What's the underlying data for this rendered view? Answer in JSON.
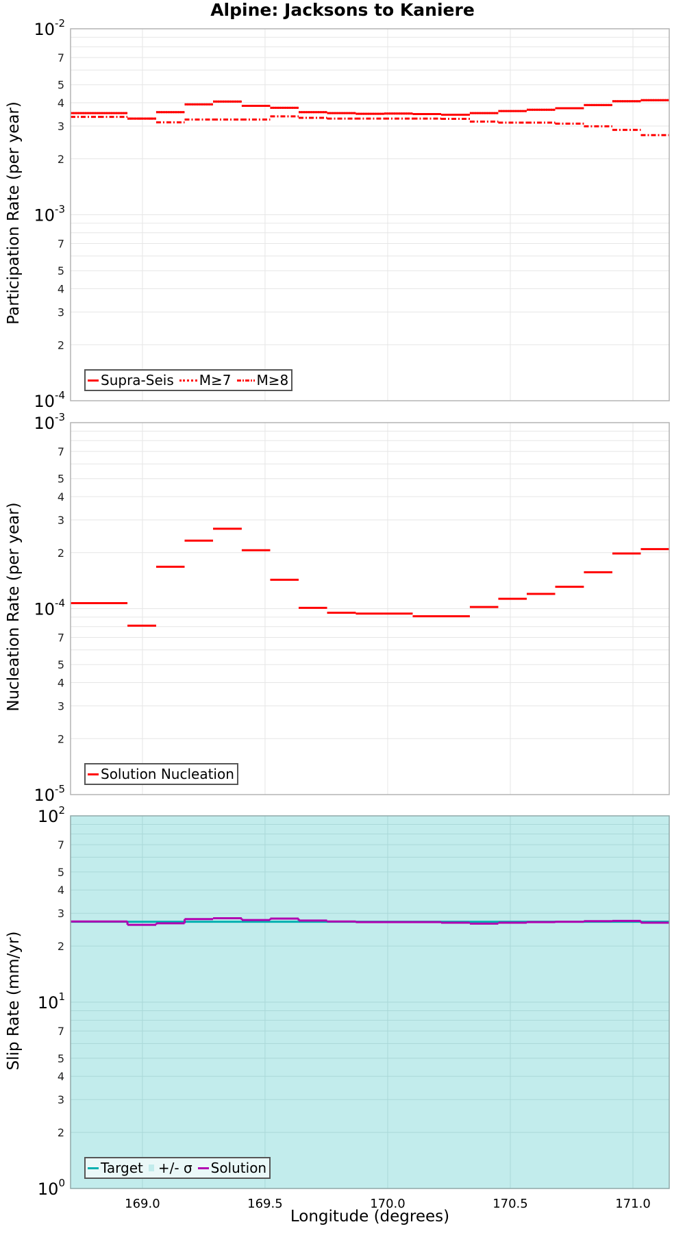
{
  "title": "Alpine: Jacksons to Kaniere",
  "xlabel": "Longitude (degrees)",
  "x_ticks": [
    "169.0",
    "169.5",
    "170.0",
    "170.5",
    "171.0"
  ],
  "panels": [
    {
      "ylabel": "Participation Rate (per year)",
      "legend": [
        {
          "label": "Supra-Seis",
          "style": "solid",
          "color": "#ff0000"
        },
        {
          "label": "M≥7",
          "style": "dotted",
          "color": "#ff0000"
        },
        {
          "label": "M≥8",
          "style": "dashdot",
          "color": "#ff0000"
        }
      ]
    },
    {
      "ylabel": "Nucleation Rate (per year)",
      "legend": [
        {
          "label": "Solution Nucleation",
          "style": "solid",
          "color": "#ff0000"
        }
      ]
    },
    {
      "ylabel": "Slip Rate (mm/yr)",
      "legend": [
        {
          "label": "Target",
          "style": "solid",
          "color": "#00b0b0"
        },
        {
          "label": "+/- σ",
          "style": "box",
          "color": "#c2ecec"
        },
        {
          "label": "Solution",
          "style": "solid",
          "color": "#b000b0"
        }
      ]
    }
  ],
  "chart_data": [
    {
      "type": "line",
      "subtype": "step",
      "title": "Alpine: Jacksons to Kaniere",
      "xlabel": "Longitude (degrees)",
      "ylabel": "Participation Rate (per year)",
      "yscale": "log",
      "ylim": [
        0.0001,
        0.01
      ],
      "xlim": [
        168.707,
        171.148
      ],
      "y_major_ticks": [
        "10^-4",
        "10^-3",
        "10^-2"
      ],
      "y_minor_tick_labels": [
        "2",
        "3",
        "4",
        "5",
        "7"
      ],
      "x_ticks": [
        169.0,
        169.5,
        170.0,
        170.5,
        171.0
      ],
      "grid": true,
      "legend_position": "lower left",
      "bin_edges": [
        168.707,
        168.823,
        168.939,
        169.056,
        169.172,
        169.288,
        169.405,
        169.521,
        169.637,
        169.753,
        169.87,
        169.986,
        170.102,
        170.218,
        170.335,
        170.451,
        170.567,
        170.683,
        170.8,
        170.916,
        171.032,
        171.148
      ],
      "series": [
        {
          "name": "Supra-Seis",
          "style": "solid",
          "color": "#ff0000",
          "values": [
            0.00352,
            0.00352,
            0.00329,
            0.00356,
            0.00392,
            0.00406,
            0.00385,
            0.00376,
            0.00356,
            0.00352,
            0.00349,
            0.0035,
            0.00348,
            0.00345,
            0.00352,
            0.00361,
            0.00367,
            0.00374,
            0.00389,
            0.00408,
            0.00413
          ]
        },
        {
          "name": "M≥7",
          "style": "dotted",
          "color": "#ff0000",
          "values": [
            0.00352,
            0.00352,
            0.00329,
            0.00356,
            0.00392,
            0.00406,
            0.00385,
            0.00376,
            0.00356,
            0.00352,
            0.00349,
            0.0035,
            0.00348,
            0.00345,
            0.00352,
            0.00361,
            0.00367,
            0.00374,
            0.00389,
            0.00408,
            0.00413
          ]
        },
        {
          "name": "M≥8",
          "style": "dashdot",
          "color": "#ff0000",
          "values": [
            0.00336,
            0.00336,
            0.00329,
            0.00314,
            0.00325,
            0.00325,
            0.00325,
            0.00338,
            0.00332,
            0.00329,
            0.00329,
            0.00329,
            0.00329,
            0.00328,
            0.00317,
            0.00313,
            0.00313,
            0.00309,
            0.00299,
            0.00286,
            0.00268
          ]
        }
      ]
    },
    {
      "type": "line",
      "subtype": "step",
      "xlabel": "",
      "ylabel": "Nucleation Rate (per year)",
      "yscale": "log",
      "ylim": [
        1e-05,
        0.001
      ],
      "xlim": [
        168.707,
        171.148
      ],
      "y_major_ticks": [
        "10^-5",
        "10^-4",
        "10^-3"
      ],
      "y_minor_tick_labels": [
        "2",
        "3",
        "4",
        "5",
        "7"
      ],
      "grid": true,
      "legend_position": "lower left",
      "series": [
        {
          "name": "Solution Nucleation",
          "style": "solid",
          "color": "#ff0000",
          "values": [
            0.000107,
            0.000107,
            8.1e-05,
            0.000168,
            0.000232,
            0.000269,
            0.000206,
            0.000143,
            0.000101,
            9.5e-05,
            9.4e-05,
            9.4e-05,
            9.1e-05,
            9.1e-05,
            0.000102,
            0.000113,
            0.00012,
            0.000131,
            0.000157,
            0.000198,
            0.000209
          ]
        }
      ]
    },
    {
      "type": "line",
      "subtype": "step",
      "xlabel": "Longitude (degrees)",
      "ylabel": "Slip Rate (mm/yr)",
      "yscale": "log",
      "ylim": [
        1,
        100
      ],
      "xlim": [
        168.707,
        171.148
      ],
      "y_major_ticks": [
        "10^0",
        "10^1",
        "10^2"
      ],
      "y_minor_tick_labels": [
        "2",
        "3",
        "4",
        "5",
        "7"
      ],
      "x_ticks": [
        169.0,
        169.5,
        170.0,
        170.5,
        171.0
      ],
      "grid": true,
      "legend_position": "lower left",
      "background_fill": "+/- σ band covers entire plot area",
      "series": [
        {
          "name": "Target",
          "style": "solid",
          "color": "#00b0b0",
          "values": [
            27.0,
            27.0,
            27.0,
            27.0,
            27.0,
            27.0,
            27.0,
            27.0,
            27.0,
            27.0,
            27.0,
            27.0,
            27.0,
            27.0,
            27.0,
            27.0,
            27.0,
            27.0,
            27.0,
            27.0,
            27.0
          ]
        },
        {
          "name": "+/- σ",
          "style": "fill",
          "color": "#c2ecec",
          "lower": 1,
          "upper": 100
        },
        {
          "name": "Solution",
          "style": "solid",
          "color": "#b000b0",
          "values": [
            27.1,
            27.1,
            26.0,
            26.5,
            27.9,
            28.2,
            27.6,
            28.1,
            27.4,
            27.1,
            26.9,
            26.9,
            26.9,
            26.7,
            26.4,
            26.7,
            26.9,
            27.0,
            27.2,
            27.3,
            26.7
          ]
        }
      ]
    }
  ]
}
